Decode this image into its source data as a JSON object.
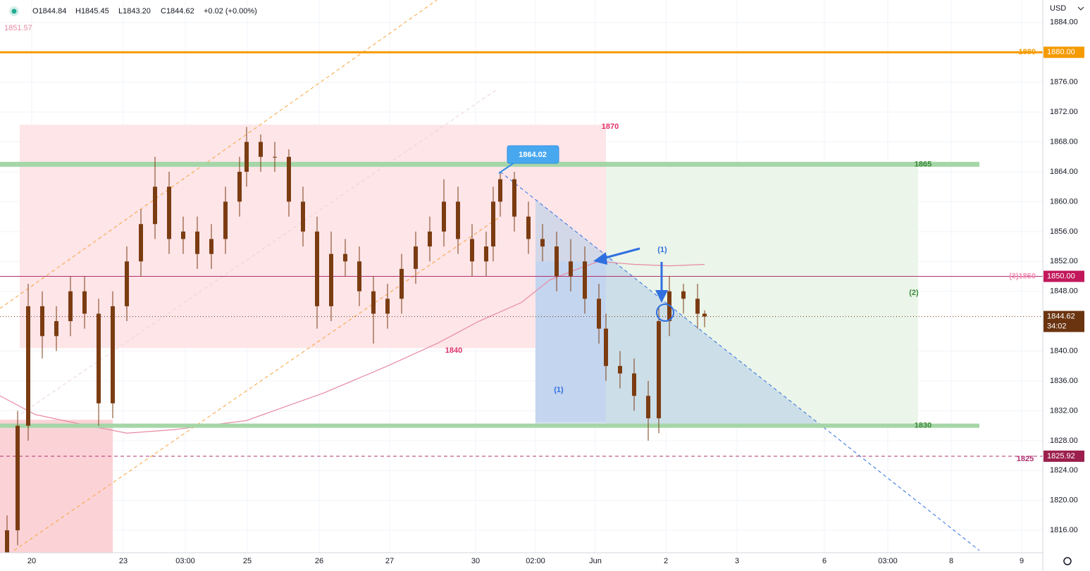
{
  "chart_data": {
    "type": "candlestick",
    "symbol_header": {
      "open": "O1844.84",
      "high": "H1845.45",
      "low": "L1843.20",
      "close": "C1844.62",
      "change": "+0.02 (+0.00%)"
    },
    "indicator_value": "1851.57",
    "currency": "USD",
    "countdown": "34:02",
    "callout": "1864.02",
    "xlim": [
      0,
      148
    ],
    "ylim": [
      1813,
      1887
    ],
    "xticks": [
      {
        "value": 4.5,
        "label": "20"
      },
      {
        "value": 17.5,
        "label": "23"
      },
      {
        "value": 26.3,
        "label": "03:00"
      },
      {
        "value": 35.1,
        "label": "25"
      },
      {
        "value": 45.3,
        "label": "26"
      },
      {
        "value": 55.3,
        "label": "27"
      },
      {
        "value": 67.5,
        "label": "30"
      },
      {
        "value": 76,
        "label": "02:00"
      },
      {
        "value": 84.5,
        "label": "Jun"
      },
      {
        "value": 94.5,
        "label": "2"
      },
      {
        "value": 104.6,
        "label": "3"
      },
      {
        "value": 117,
        "label": "6"
      },
      {
        "value": 126,
        "label": "03:00"
      },
      {
        "value": 135,
        "label": "8"
      },
      {
        "value": 145,
        "label": "9"
      }
    ],
    "yticks": [
      {
        "value": 1884,
        "label": "1884.00"
      },
      {
        "value": 1876,
        "label": "1876.00"
      },
      {
        "value": 1872,
        "label": "1872.00"
      },
      {
        "value": 1868,
        "label": "1868.00"
      },
      {
        "value": 1864,
        "label": "1864.00"
      },
      {
        "value": 1860,
        "label": "1860.00"
      },
      {
        "value": 1856,
        "label": "1856.00"
      },
      {
        "value": 1852,
        "label": "1852.00"
      },
      {
        "value": 1848,
        "label": "1848.00"
      },
      {
        "value": 1840,
        "label": "1840.00"
      },
      {
        "value": 1836,
        "label": "1836.00"
      },
      {
        "value": 1832,
        "label": "1832.00"
      },
      {
        "value": 1828,
        "label": "1828.00"
      },
      {
        "value": 1824,
        "label": "1824.00"
      },
      {
        "value": 1820,
        "label": "1820.00"
      },
      {
        "value": 1816,
        "label": "1816.00"
      }
    ],
    "color": "#7b3c12",
    "x": [
      1,
      2.5,
      4,
      6,
      8,
      10,
      12,
      14,
      16,
      18,
      20,
      22,
      24,
      26,
      28,
      30,
      32,
      34,
      35,
      37,
      39,
      41,
      43,
      45,
      47,
      49,
      51,
      53,
      55,
      57,
      59,
      61,
      63,
      65,
      67,
      69,
      70,
      71,
      73,
      75,
      77,
      79,
      81,
      83,
      85,
      86,
      88,
      90,
      92,
      93.5,
      95,
      97,
      99,
      100
    ],
    "open": [
      1813,
      1816,
      1830,
      1846,
      1842,
      1844,
      1848,
      1845,
      1833,
      1846,
      1852,
      1857,
      1862,
      1855,
      1856,
      1853,
      1855,
      1860,
      1864,
      1868,
      1866,
      1866,
      1860,
      1856,
      1846,
      1853,
      1852,
      1848,
      1845,
      1847,
      1851,
      1854,
      1856,
      1860,
      1855,
      1852,
      1854,
      1860,
      1863,
      1858,
      1855,
      1854,
      1850,
      1852,
      1847,
      1843,
      1838,
      1837,
      1834,
      1831,
      1844,
      1848,
      1847,
      1845
    ],
    "high": [
      1818,
      1832,
      1849,
      1848,
      1846,
      1850,
      1850,
      1847,
      1848,
      1854,
      1859,
      1866,
      1864,
      1858,
      1858,
      1857,
      1862,
      1866,
      1870,
      1869,
      1868,
      1867,
      1862,
      1858,
      1856,
      1855,
      1854,
      1850,
      1849,
      1853,
      1856,
      1858,
      1863,
      1862,
      1857,
      1856,
      1862,
      1864.02,
      1864,
      1860,
      1857,
      1856,
      1855,
      1854,
      1849,
      1845,
      1840,
      1839,
      1836,
      1846,
      1850,
      1849,
      1849,
      1845.45
    ],
    "low": [
      1813,
      1814,
      1828,
      1839,
      1840,
      1842,
      1843,
      1830,
      1831,
      1844,
      1850,
      1855,
      1853,
      1853,
      1851,
      1851,
      1853,
      1858,
      1862,
      1864,
      1864,
      1858,
      1854,
      1843,
      1844,
      1850,
      1846,
      1841,
      1843,
      1845,
      1849,
      1852,
      1854,
      1853,
      1850,
      1850,
      1852,
      1858,
      1856,
      1853,
      1852,
      1848,
      1848,
      1845,
      1841,
      1836,
      1835,
      1832,
      1828,
      1829,
      1842,
      1845,
      1843,
      1843.2
    ],
    "close": [
      1816,
      1830,
      1846,
      1842,
      1844,
      1848,
      1845,
      1833,
      1846,
      1852,
      1857,
      1862,
      1855,
      1856,
      1853,
      1855,
      1860,
      1864,
      1868,
      1866,
      1866,
      1860,
      1856,
      1846,
      1853,
      1852,
      1848,
      1845,
      1847,
      1851,
      1854,
      1856,
      1860,
      1855,
      1852,
      1854,
      1860,
      1863,
      1858,
      1855,
      1854,
      1850,
      1852,
      1847,
      1843,
      1838,
      1837,
      1834,
      1831,
      1844,
      1848,
      1847,
      1845,
      1844.62
    ],
    "moving_average": {
      "color": "#e88aa3",
      "x": [
        0,
        5,
        10,
        18,
        25,
        35,
        46,
        55,
        62,
        68,
        74,
        78,
        82,
        85,
        90,
        95,
        100
      ],
      "values": [
        1834,
        1831.5,
        1830.5,
        1829,
        1829.5,
        1830.7,
        1834.4,
        1838,
        1841,
        1844,
        1846.5,
        1849.5,
        1851,
        1852,
        1851.6,
        1851.4,
        1851.6
      ]
    },
    "zones": [
      {
        "x": [
          2.8,
          86
        ],
        "y": [
          1840.4,
          1870.3
        ],
        "color": "#fde5e8"
      },
      {
        "x": [
          0,
          16
        ],
        "y": [
          1813,
          1830.8
        ],
        "color": "#fbd3d7"
      },
      {
        "x": [
          86,
          130.3
        ],
        "y": [
          1830,
          1865
        ],
        "color": "#ebf5e9"
      },
      {
        "x": [
          76,
          86
        ],
        "y": [
          1830.5,
          1852
        ],
        "color": "#d7defa"
      }
    ],
    "shade": {
      "x": [
        76,
        116.5,
        76
      ],
      "y": [
        1860.3,
        1830,
        1830
      ],
      "color": "#b7cfe8"
    },
    "trendlines": [
      {
        "x": [
          0,
          62
        ],
        "y": [
          1845.7,
          1887
        ],
        "color": "#f7a33a",
        "style": "dashed"
      },
      {
        "x": [
          2,
          71
        ],
        "y": [
          1813.3,
          1858
        ],
        "color": "#f7a33a",
        "style": "dashed"
      },
      {
        "x": [
          3,
          70.5
        ],
        "y": [
          1831.6,
          1875
        ],
        "color": "#e9d3d9",
        "style": "dashed"
      },
      {
        "x": [
          71,
          139
        ],
        "y": [
          1864,
          1813.3
        ],
        "color": "#2f6fe0",
        "style": "dashed"
      }
    ],
    "levels": [
      {
        "value": 1880,
        "label": "1880",
        "price_label": "1880.00",
        "color": "#f59a00",
        "width": 3,
        "style": "solid"
      },
      {
        "value": 1865,
        "label": "1865",
        "color": "#a5d6a7",
        "width": 7,
        "style": "solid",
        "x_end": 139
      },
      {
        "value": 1830,
        "label": "1830",
        "color": "#a5d6a7",
        "width": 6,
        "style": "solid",
        "x_end": 139
      },
      {
        "value": 1850,
        "label": "(3)1850",
        "price_label": "1850.00",
        "color": "#b0306f",
        "width": 1,
        "style": "solid"
      },
      {
        "value": 1825.92,
        "price_label": "1825.92",
        "color": "#b0306f",
        "width": 1,
        "style": "dashed"
      },
      {
        "value": 1844.62,
        "price_label": "1844.62",
        "color": "#6b3410",
        "width": 1,
        "style": "dotted"
      }
    ],
    "annotations": [
      {
        "text": "1870",
        "color": "#e0306a"
      },
      {
        "text": "1840",
        "color": "#e0306a"
      },
      {
        "text": "(1)",
        "color": "#2f6fe0"
      },
      {
        "text": "(1)",
        "color": "#2f6fe0"
      },
      {
        "text": "(2)",
        "color": "#3a8a3a"
      },
      {
        "text": "1825",
        "color": "#b0306f"
      }
    ]
  }
}
